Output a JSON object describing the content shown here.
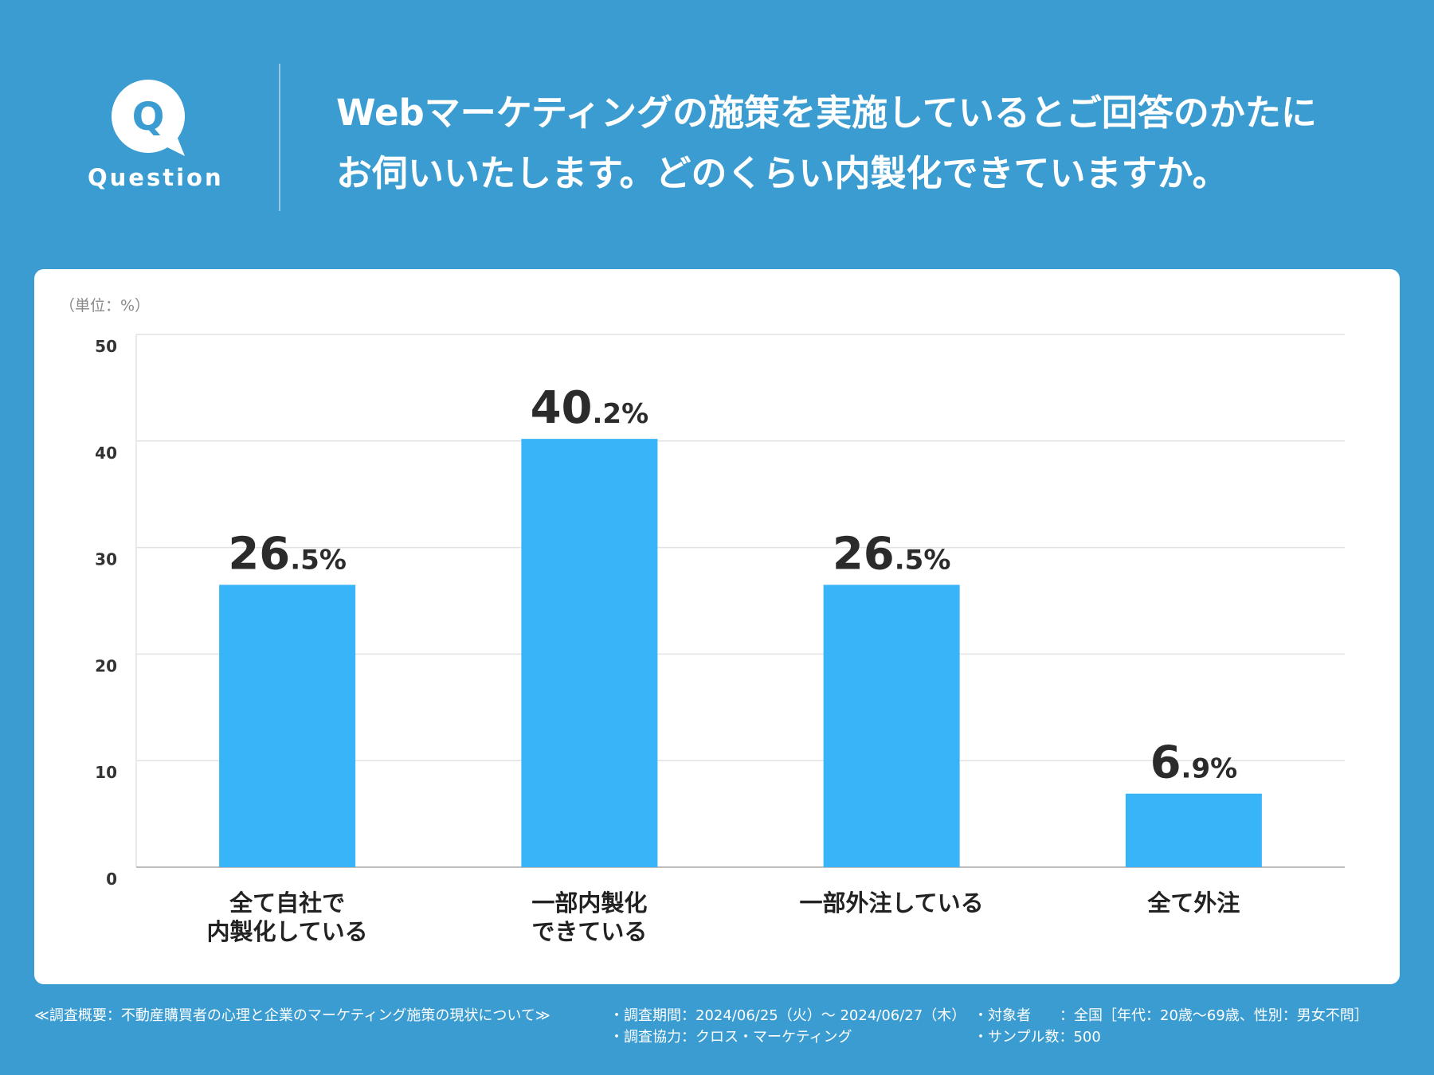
{
  "header": {
    "badge_letter": "Q",
    "badge_label": "Question",
    "question_lines": [
      "Webマーケティングの施策を実施しているとご回答のかたに",
      "お伺いいたします。どのくらい内製化できていますか。"
    ]
  },
  "colors": {
    "background": "#3a9cd0",
    "bar": "#38b4f8",
    "value_text": "#2b2b2b",
    "card": "#ffffff"
  },
  "chart_data": {
    "type": "bar",
    "unit_label": "（単位：%）",
    "categories": [
      [
        "全て自社で",
        "内製化している"
      ],
      [
        "一部内製化",
        "できている"
      ],
      [
        "一部外注している"
      ],
      [
        "全て外注"
      ]
    ],
    "values": [
      26.5,
      40.2,
      26.5,
      6.9
    ],
    "value_labels": [
      {
        "int": "26",
        "dec": ".5%"
      },
      {
        "int": "40",
        "dec": ".2%"
      },
      {
        "int": "26",
        "dec": ".5%"
      },
      {
        "int": "6",
        "dec": ".9%"
      }
    ],
    "ylim": [
      0,
      50
    ],
    "yticks": [
      0,
      10,
      20,
      30,
      40,
      50
    ],
    "grid": true
  },
  "footer": {
    "survey_title": "≪調査概要：不動産購買者の心理と企業のマーケティング施策の現状について≫",
    "period": "・調査期間：2024/06/25（火）〜 2024/06/27（木）",
    "cooperation": "・調査協力：クロス・マーケティング",
    "target": "・対象者　　：全国［年代：20歳〜69歳、性別：男女不問］",
    "sample": "・サンプル数：500"
  }
}
